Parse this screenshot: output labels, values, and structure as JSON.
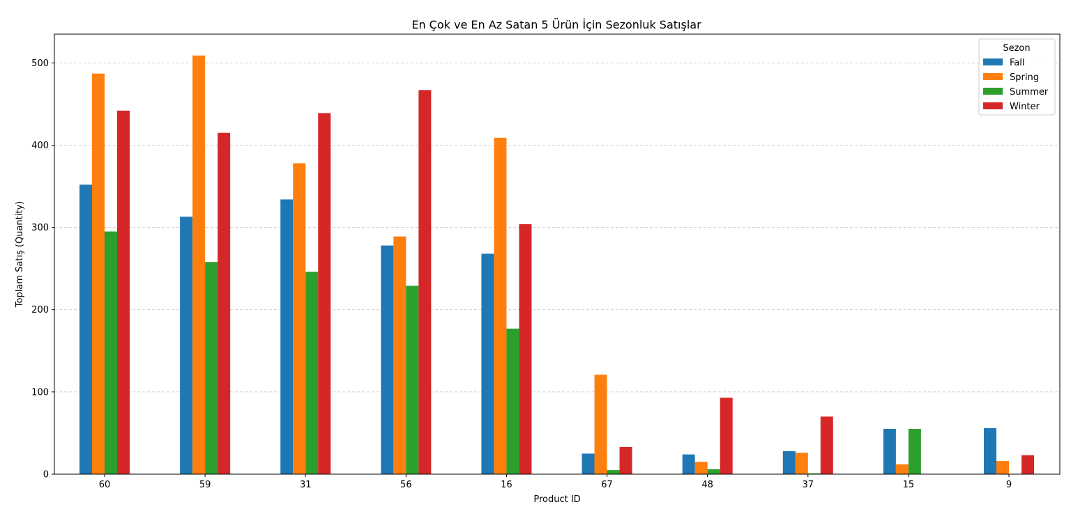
{
  "chart_data": {
    "type": "bar",
    "title": "En Çok ve En Az Satan 5 Ürün İçin Sezonluk Satışlar",
    "xlabel": "Product ID",
    "ylabel": "Toplam Satış (Quantity)",
    "categories": [
      "60",
      "59",
      "31",
      "56",
      "16",
      "67",
      "48",
      "37",
      "15",
      "9"
    ],
    "ylim": [
      0,
      535
    ],
    "yticks": [
      0,
      100,
      200,
      300,
      400,
      500
    ],
    "grid": "y-dashed",
    "legend_title": "Sezon",
    "legend_position": "top-right",
    "series": [
      {
        "name": "Fall",
        "color": "#1f77b4",
        "values": [
          352,
          313,
          334,
          278,
          268,
          25,
          24,
          28,
          55,
          56
        ]
      },
      {
        "name": "Spring",
        "color": "#ff7f0e",
        "values": [
          487,
          509,
          378,
          289,
          409,
          121,
          15,
          26,
          12,
          16
        ]
      },
      {
        "name": "Summer",
        "color": "#2ca02c",
        "values": [
          295,
          258,
          246,
          229,
          177,
          5,
          6,
          1,
          55,
          0
        ]
      },
      {
        "name": "Winter",
        "color": "#d62728",
        "values": [
          442,
          415,
          439,
          467,
          304,
          33,
          93,
          70,
          0,
          23
        ]
      }
    ]
  }
}
